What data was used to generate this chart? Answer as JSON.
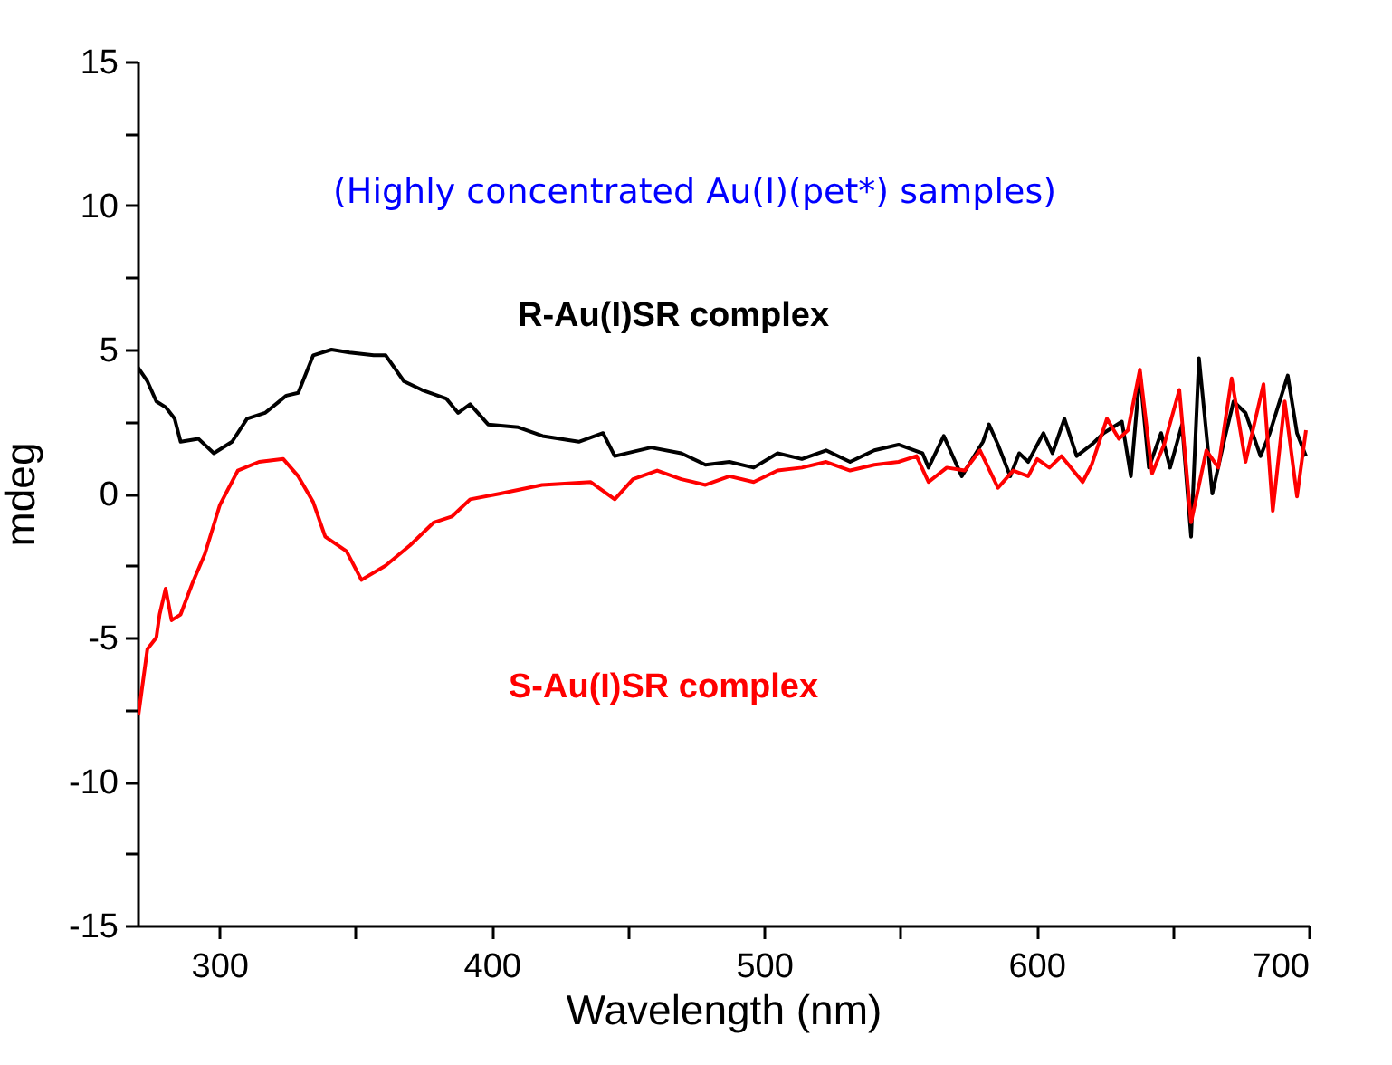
{
  "chart_data": {
    "type": "line",
    "xlabel": "Wavelength (nm)",
    "ylabel": "mdeg",
    "annotations": [
      "(Highly concentrated Au(I)(pet*) samples)"
    ],
    "xlim": [
      270,
      700
    ],
    "xticks": [
      300,
      {
        "value": 350,
        "label": null
      },
      400,
      {
        "value": 450,
        "label": null
      },
      500,
      {
        "value": 550,
        "label": null
      },
      600,
      {
        "value": 650,
        "label": null
      },
      700
    ],
    "ylim": [
      -15,
      15
    ],
    "yticks": [
      -15,
      {
        "value": -12.5,
        "label": null
      },
      -10,
      {
        "value": -7.5,
        "label": null
      },
      -5,
      {
        "value": -2.5,
        "label": null
      },
      0,
      {
        "value": 2.5,
        "label": null
      },
      5,
      {
        "value": 7.5,
        "label": null
      },
      10,
      {
        "value": 12.5,
        "label": null
      },
      15
    ],
    "grid": false,
    "legend": false,
    "series": [
      {
        "name": "R-Au(I)SR complex",
        "color": "#000000",
        "x": [
          270,
          273.6,
          276.9,
          280.3,
          283.6,
          285.8,
          292.4,
          298.0,
          304.7,
          310.2,
          316.8,
          324.6,
          329.0,
          334.5,
          341.2,
          347.8,
          356.7,
          361.1,
          367.8,
          374.4,
          383.3,
          387.7,
          392.1,
          398.7,
          409.8,
          418.7,
          432.0,
          440.9,
          445.2,
          458.5,
          469.6,
          478.5,
          487.3,
          496.2,
          505.0,
          513.9,
          522.8,
          531.6,
          540.5,
          549.4,
          558.2,
          560.4,
          566.0,
          572.6,
          580.4,
          582.6,
          585.9,
          590.4,
          593.7,
          597.0,
          602.6,
          605.9,
          610.3,
          614.8,
          620.3,
          624.7,
          631.4,
          634.7,
          638.0,
          641.3,
          645.8,
          649.1,
          653.5,
          656.8,
          659.7,
          664.6,
          669.1,
          672.4,
          676.8,
          682.3,
          685.7,
          692.3,
          695.7,
          699.0
        ],
        "values": [
          4.4,
          3.9,
          3.2,
          3.0,
          2.6,
          1.8,
          1.9,
          1.4,
          1.8,
          2.6,
          2.8,
          3.4,
          3.5,
          4.8,
          5.0,
          4.9,
          4.8,
          4.8,
          3.9,
          3.6,
          3.3,
          2.8,
          3.1,
          2.4,
          2.3,
          2.0,
          1.8,
          2.1,
          1.3,
          1.6,
          1.4,
          1.0,
          1.1,
          0.9,
          1.4,
          1.2,
          1.5,
          1.1,
          1.5,
          1.7,
          1.4,
          0.9,
          2.0,
          0.6,
          1.8,
          2.4,
          1.7,
          0.6,
          1.4,
          1.1,
          2.1,
          1.4,
          2.6,
          1.3,
          1.7,
          2.1,
          2.5,
          0.6,
          4.2,
          0.9,
          2.1,
          0.9,
          2.4,
          -1.5,
          4.7,
          0.0,
          1.9,
          3.2,
          2.8,
          1.3,
          2.1,
          4.1,
          2.1,
          1.3
        ]
      },
      {
        "name": "S-Au(I)SR complex",
        "color": "#ff0000",
        "x": [
          270.3,
          273.6,
          276.9,
          278.1,
          280.3,
          282.5,
          285.8,
          290.2,
          294.7,
          300.2,
          306.8,
          314.6,
          323.5,
          329.0,
          334.5,
          338.9,
          346.7,
          352.2,
          361.1,
          370.0,
          378.8,
          385.4,
          392.1,
          403.2,
          418.5,
          436.4,
          445.2,
          451.9,
          460.8,
          469.6,
          478.5,
          487.3,
          496.2,
          505.0,
          513.9,
          522.8,
          531.6,
          540.5,
          549.4,
          556.0,
          560.4,
          567.1,
          573.7,
          579.3,
          585.9,
          591.5,
          597.0,
          600.3,
          604.8,
          609.2,
          617.0,
          620.3,
          625.9,
          630.3,
          633.6,
          638.0,
          642.5,
          646.9,
          652.5,
          656.8,
          662.4,
          666.8,
          671.7,
          676.8,
          683.4,
          686.8,
          691.2,
          695.7,
          699.0
        ],
        "values": [
          -7.7,
          -5.4,
          -5.0,
          -4.2,
          -3.3,
          -4.4,
          -4.2,
          -3.1,
          -2.1,
          -0.4,
          0.8,
          1.1,
          1.2,
          0.6,
          -0.3,
          -1.5,
          -2.0,
          -3.0,
          -2.5,
          -1.8,
          -1.0,
          -0.8,
          -0.2,
          0.0,
          0.3,
          0.4,
          -0.2,
          0.5,
          0.8,
          0.5,
          0.3,
          0.6,
          0.4,
          0.8,
          0.9,
          1.1,
          0.8,
          1.0,
          1.1,
          1.3,
          0.4,
          0.9,
          0.8,
          1.5,
          0.2,
          0.8,
          0.6,
          1.2,
          0.9,
          1.3,
          0.4,
          1.0,
          2.6,
          1.9,
          2.2,
          4.3,
          0.7,
          1.7,
          3.6,
          -1.0,
          1.5,
          0.9,
          4.0,
          1.1,
          3.8,
          -0.6,
          3.2,
          -0.1,
          2.2
        ]
      }
    ]
  }
}
